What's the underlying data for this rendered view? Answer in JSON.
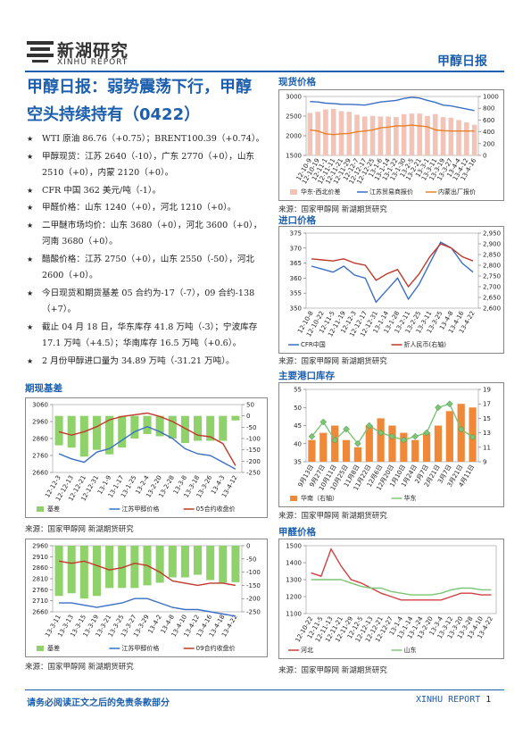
{
  "header": {
    "logo_cn": "新湖研究",
    "logo_en": "XINHU REPORT",
    "report_name": "甲醇日报"
  },
  "title": "甲醇日报：弱势震荡下行，甲醇空头持续持有（0422）",
  "bullets": [
    "WTI 原油 86.76（+0.75）；BRENT100.39（+0.74）。",
    "甲醇现货：江苏 2640（-10），广东 2770（+0），山东 2510（+0），内蒙 2120（+0）。",
    "CFR 中国 362 美元/吨（-1）。",
    "甲醛价格：山东 1240（+0），河北 1210（+0）。",
    "二甲醚市场均价：山东 3680（+0），河北 3600（+0），河南 3680（+0）。",
    "醋酸价格：江苏 2750（+0），山东 2550（-50），河北 2600（+0）。",
    "今日现货和期货基差 05 合约为-17（-7），09 合约-138（+7）。",
    "截止 04 月 18 日，华东库存 41.8 万吨（-3）；宁波库存 17.1 万吨（+4.5）；华南库存 16.5 万吨（+0.6）。",
    "2 月份甲醇进口量为 34.89 万吨（-31.21 万吨）。"
  ],
  "charts": [
    {
      "type": "combo",
      "heading": "期现基差",
      "source": "来源：国家甲醇网 新湖期货研究",
      "categories": [
        "12-12-3",
        "12-12-13",
        "12-12-21",
        "12-12-31",
        "13-1-9",
        "13-1-17",
        "13-1-25",
        "13-2-4",
        "13-2-20",
        "13-2-28",
        "13-3-8",
        "13-3-18",
        "13-3-26",
        "13-4-3",
        "13-4-12"
      ],
      "series": [
        {
          "name": "基差",
          "kind": "bar",
          "axis": "y2",
          "color": "#8fd16a",
          "values": [
            -130,
            -140,
            -180,
            -150,
            -170,
            -140,
            -100,
            -80,
            -90,
            -100,
            -120,
            -110,
            -110,
            -110,
            -20
          ]
        },
        {
          "name": "江苏甲醇价格",
          "kind": "line",
          "color": "#3a6fc4",
          "values": [
            2770,
            2740,
            2720,
            2780,
            2800,
            2850,
            2900,
            2930,
            2900,
            2860,
            2800,
            2770,
            2760,
            2720,
            2680
          ]
        },
        {
          "name": "05合约收盘价",
          "kind": "line",
          "color": "#c0392b",
          "values": [
            2900,
            2880,
            2900,
            2930,
            2970,
            2990,
            3000,
            3010,
            2990,
            2960,
            2920,
            2880,
            2870,
            2830,
            2700
          ]
        }
      ],
      "ylim": [
        2660,
        3060
      ],
      "yticks": [
        2660,
        2760,
        2860,
        2960,
        3060
      ],
      "y2lim": [
        -250,
        50
      ],
      "y2ticks": [
        -250,
        -200,
        -150,
        -100,
        -50,
        0,
        50
      ]
    },
    {
      "type": "combo",
      "source": "来源：国家甲醇网 新湖期货研究",
      "categories": [
        "13-3-11",
        "13-3-13",
        "13-3-15",
        "13-3-19",
        "13-3-21",
        "13-3-25",
        "13-3-27",
        "13-3-29",
        "13-4-2",
        "13-4-8",
        "13-4-10",
        "13-4-12",
        "13-4-16",
        "13-4-18",
        "13-4-22"
      ],
      "series": [
        {
          "name": "基差",
          "kind": "bar",
          "axis": "y2",
          "color": "#8fd16a",
          "values": [
            -190,
            -180,
            -200,
            -190,
            -160,
            -160,
            -160,
            -150,
            -140,
            -120,
            -120,
            -110,
            -130,
            -140,
            -138
          ]
        },
        {
          "name": "江苏甲醇价格",
          "kind": "line",
          "color": "#3a6fc4",
          "values": [
            2700,
            2700,
            2690,
            2680,
            2690,
            2700,
            2720,
            2720,
            2700,
            2680,
            2670,
            2670,
            2660,
            2650,
            2640
          ]
        },
        {
          "name": "09合约收盘价",
          "kind": "line",
          "color": "#c0392b",
          "values": [
            2890,
            2880,
            2890,
            2870,
            2850,
            2860,
            2880,
            2870,
            2840,
            2800,
            2790,
            2780,
            2790,
            2790,
            2780
          ]
        }
      ],
      "ylim": [
        2660,
        2960
      ],
      "yticks": [
        2660,
        2710,
        2760,
        2810,
        2860,
        2910,
        2960
      ],
      "y2lim": [
        -250,
        0
      ],
      "y2ticks": [
        -250,
        -200,
        -150,
        -100,
        -50,
        0
      ]
    },
    {
      "type": "combo",
      "heading": "现货价格",
      "source": "来源：国家甲醇网 新湖期货研究",
      "categories": [
        "12-10-9",
        "12-10-19",
        "12-11-1",
        "12-11-11",
        "12-11-21",
        "12-11-29",
        "12-12-7",
        "12-12-17",
        "12-12-25",
        "13-1-6",
        "13-1-14",
        "13-1-22",
        "13-1-30",
        "13-2-5",
        "13-2-21",
        "13-3-1",
        "13-3-11",
        "13-3-19",
        "13-3-27",
        "13-4-4",
        "13-4-12",
        "13-4-16"
      ],
      "series": [
        {
          "name": "华东-西北价差",
          "kind": "bar",
          "axis": "y2",
          "color": "#f2c4b8",
          "values": [
            720,
            740,
            780,
            790,
            750,
            740,
            690,
            660,
            670,
            660,
            660,
            650,
            700,
            710,
            710,
            670,
            700,
            650,
            640,
            600,
            560,
            520
          ]
        },
        {
          "name": "江苏贸易商报价",
          "kind": "line",
          "color": "#3a6fc4",
          "values": [
            2870,
            2860,
            2830,
            2820,
            2800,
            2800,
            2790,
            2780,
            2820,
            2860,
            2880,
            2900,
            2950,
            2980,
            2960,
            2900,
            2850,
            2780,
            2760,
            2720,
            2680,
            2640
          ]
        },
        {
          "name": "内蒙出厂报价",
          "kind": "line",
          "color": "#e8822a",
          "values": [
            2150,
            2120,
            2050,
            2030,
            2050,
            2060,
            2100,
            2120,
            2150,
            2200,
            2220,
            2250,
            2250,
            2270,
            2250,
            2230,
            2150,
            2130,
            2120,
            2120,
            2120,
            2120
          ]
        }
      ],
      "ylim": [
        1500,
        3000
      ],
      "yticks": [
        1500,
        2000,
        2500,
        3000
      ],
      "y2lim": [
        0,
        1000
      ],
      "y2ticks": [
        0,
        200,
        400,
        600,
        800,
        1000
      ]
    },
    {
      "type": "combo",
      "heading": "进口价格",
      "source": "来源：国家甲醇网 新湖期货研究",
      "categories": [
        "12-10-8",
        "12-10-22",
        "12-11-5",
        "12-11-19",
        "12-12-3",
        "12-12-17",
        "12-12-31",
        "13-1-14",
        "13-1-28",
        "13-2-11",
        "13-2-25",
        "13-3-11",
        "13-3-25",
        "13-4-8",
        "13-4-16",
        "13-4-22"
      ],
      "series": [
        {
          "name": "CFR中国",
          "kind": "line",
          "color": "#3a6fc4",
          "values": [
            364,
            363,
            362,
            364,
            361,
            360,
            352,
            356,
            360,
            353,
            358,
            365,
            372,
            370,
            365,
            362
          ]
        },
        {
          "name": "折人民币(右轴)",
          "kind": "line",
          "axis": "y2",
          "color": "#c0392b",
          "values": [
            2830,
            2825,
            2820,
            2830,
            2810,
            2800,
            2730,
            2760,
            2780,
            2700,
            2760,
            2840,
            2900,
            2880,
            2840,
            2820
          ]
        }
      ],
      "ylim": [
        350,
        375
      ],
      "yticks": [
        350,
        355,
        360,
        365,
        370,
        375
      ],
      "y2lim": [
        2600,
        2950
      ],
      "y2ticks": [
        {
          "value": 2600,
          "label": "2,600"
        },
        {
          "value": 2650,
          "label": "2,650"
        },
        {
          "value": 2700,
          "label": "2,700"
        },
        {
          "value": 2750,
          "label": "2,750"
        },
        {
          "value": 2800,
          "label": "2,800"
        },
        {
          "value": 2850,
          "label": "2,850"
        },
        {
          "value": 2900,
          "label": "2,900"
        },
        {
          "value": 2950,
          "label": "2,950"
        }
      ]
    },
    {
      "type": "combo",
      "heading": "主要港口库存",
      "source": "来源：国家甲醇网 新湖期货研究",
      "categories": [
        "9月13日",
        "9月27日",
        "10月11日",
        "10月25日",
        "11月8日",
        "11月22日",
        "12月6日",
        "12月20日",
        "1月10日",
        "1月24日",
        "2月7日",
        "2月21日",
        "3月7日",
        "3月21日",
        "4月11日"
      ],
      "series": [
        {
          "name": "华南（右轴）",
          "kind": "bar",
          "axis": "y2",
          "color": "#f0883a",
          "values": [
            12,
            13,
            14,
            12,
            11,
            14,
            15,
            14,
            13,
            12,
            13,
            14,
            16,
            17,
            16.5
          ]
        },
        {
          "name": "华东",
          "kind": "line",
          "marker": "diamond",
          "color": "#7cc576",
          "values": [
            42,
            46,
            41,
            44,
            40,
            45,
            43,
            42,
            41,
            42,
            43,
            50,
            51,
            44,
            41.8
          ]
        }
      ],
      "ylim": [
        35,
        55
      ],
      "yticks": [
        35,
        40,
        45,
        50,
        55
      ],
      "y2lim": [
        9,
        19
      ],
      "y2ticks": [
        9,
        11,
        13,
        15,
        17,
        19
      ]
    },
    {
      "type": "combo",
      "heading": "甲醛价格",
      "source": "来源：国家甲醇网 新湖期货研究",
      "categories": [
        "12-10-22",
        "12-11-5",
        "12-11-13",
        "12-11-21",
        "12-11-29",
        "12-12-5",
        "12-12-13",
        "12-12-21",
        "12-12-27",
        "13-1-4",
        "13-1-14",
        "13-1-24",
        "13-2-20",
        "13-3-4",
        "13-3-12",
        "13-3-20",
        "13-3-28",
        "13-4-10",
        "13-4-22"
      ],
      "series": [
        {
          "name": "河北",
          "kind": "line",
          "color": "#d04040",
          "values": [
            1340,
            1320,
            1480,
            1380,
            1300,
            1280,
            1250,
            1220,
            1200,
            1180,
            1180,
            1180,
            1180,
            1180,
            1200,
            1220,
            1220,
            1210,
            1210
          ]
        },
        {
          "name": "山东",
          "kind": "line",
          "color": "#7cc576",
          "values": [
            1300,
            1300,
            1300,
            1300,
            1280,
            1260,
            1250,
            1250,
            1230,
            1220,
            1210,
            1210,
            1210,
            1220,
            1240,
            1250,
            1250,
            1240,
            1240
          ]
        }
      ],
      "ylim": [
        1100,
        1500
      ],
      "yticks": [
        1100,
        1200,
        1300,
        1400,
        1500
      ]
    }
  ],
  "footer": {
    "disclaimer": "请务必阅读正文之后的免责条款部分",
    "brand": "XINHU REPORT",
    "page": "1"
  }
}
